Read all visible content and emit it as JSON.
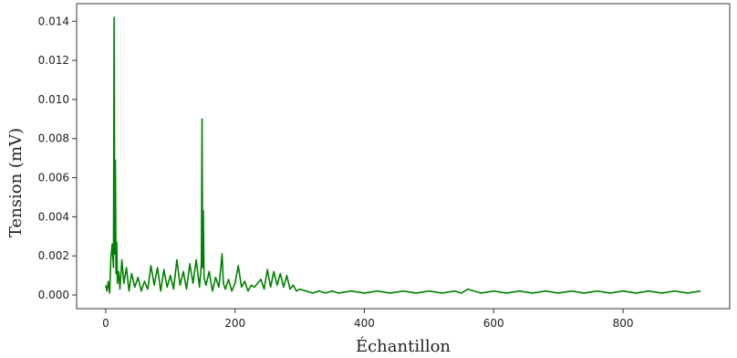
{
  "chart_data": {
    "type": "line",
    "title": "",
    "xlabel": "Échantillon",
    "ylabel": "Tension (mV)",
    "xlim": [
      -45,
      965
    ],
    "ylim": [
      -0.0007,
      0.0149
    ],
    "grid": false,
    "legend": "none",
    "xticks": [
      0,
      200,
      400,
      600,
      800
    ],
    "xtick_labels": [
      "0",
      "200",
      "400",
      "600",
      "800"
    ],
    "yticks": [
      0.0,
      0.002,
      0.004,
      0.006,
      0.008,
      0.01,
      0.012,
      0.014
    ],
    "ytick_labels": [
      "0.000",
      "0.002",
      "0.004",
      "0.006",
      "0.008",
      "0.010",
      "0.012",
      "0.014"
    ],
    "series": [
      {
        "color": "#008000",
        "x": [
          0,
          2,
          4,
          6,
          8,
          10,
          12,
          13,
          14,
          15,
          16,
          17,
          18,
          20,
          22,
          25,
          28,
          32,
          36,
          40,
          45,
          50,
          55,
          60,
          65,
          70,
          75,
          80,
          85,
          90,
          95,
          100,
          105,
          110,
          115,
          120,
          125,
          130,
          135,
          140,
          145,
          148,
          149,
          150,
          151,
          152,
          155,
          160,
          165,
          170,
          175,
          180,
          182,
          185,
          190,
          195,
          200,
          205,
          210,
          215,
          220,
          225,
          230,
          240,
          245,
          250,
          255,
          260,
          265,
          270,
          275,
          280,
          285,
          290,
          295,
          300,
          310,
          320,
          330,
          340,
          350,
          360,
          380,
          400,
          420,
          440,
          460,
          480,
          500,
          520,
          540,
          550,
          560,
          580,
          600,
          620,
          640,
          660,
          680,
          700,
          720,
          740,
          760,
          780,
          800,
          820,
          840,
          860,
          880,
          900,
          920
        ],
        "y": [
          0.0005,
          0.0002,
          0.0007,
          0.0001,
          0.0019,
          0.0026,
          0.0014,
          0.0142,
          0.0021,
          0.0069,
          0.0011,
          0.0027,
          0.0006,
          0.0012,
          0.0003,
          0.0018,
          0.0006,
          0.0014,
          0.0002,
          0.0011,
          0.0004,
          0.0009,
          0.0002,
          0.0007,
          0.0003,
          0.0015,
          0.0005,
          0.0014,
          0.0002,
          0.0013,
          0.0004,
          0.001,
          0.0003,
          0.0018,
          0.0005,
          0.0012,
          0.0003,
          0.0016,
          0.0006,
          0.0018,
          0.0004,
          0.0016,
          0.009,
          0.0014,
          0.0043,
          0.0009,
          0.0005,
          0.0012,
          0.0002,
          0.0009,
          0.0004,
          0.0021,
          0.0006,
          0.0003,
          0.0008,
          0.0002,
          0.0006,
          0.0015,
          0.0004,
          0.0007,
          0.0002,
          0.0005,
          0.0004,
          0.0008,
          0.0003,
          0.0013,
          0.0004,
          0.0012,
          0.0005,
          0.0011,
          0.0004,
          0.001,
          0.0003,
          0.0005,
          0.0002,
          0.0003,
          0.0002,
          0.0001,
          0.0002,
          0.0001,
          0.0002,
          0.0001,
          0.0002,
          0.0001,
          0.0002,
          0.0001,
          0.0002,
          0.0001,
          0.0002,
          0.0001,
          0.0002,
          0.0001,
          0.0003,
          0.0001,
          0.0002,
          0.0001,
          0.0002,
          0.0001,
          0.0002,
          0.0001,
          0.0002,
          0.0001,
          0.0002,
          0.0001,
          0.0002,
          0.0001,
          0.0002,
          0.0001,
          0.0002,
          0.0001,
          0.0002
        ]
      }
    ]
  }
}
